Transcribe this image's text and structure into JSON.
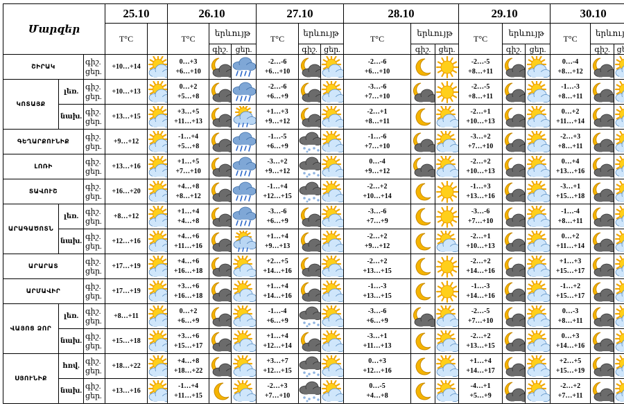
{
  "header": {
    "corner_label": "Մարզեր",
    "dates": [
      "25.10",
      "26.10",
      "27.10",
      "28.10",
      "29.10",
      "30.10"
    ],
    "temp_label": "T°C",
    "phenom_label": "երևույթ",
    "night_abbr": "գիշ.",
    "day_abbr": "ցեր."
  },
  "rows": [
    {
      "region": "ՇԻՐԱԿ",
      "sub": "",
      "first_temp": "+10…+14",
      "first_icon": "sun-cloud-icon",
      "days": [
        {
          "n": "0…+3",
          "d": "+6…+10",
          "ni": "moon-dark-cloud-icon",
          "di": "rain-icon"
        },
        {
          "n": "-2…-6",
          "d": "+6…+10",
          "ni": "moon-dark-cloud-icon",
          "di": "sun-cloud-icon"
        },
        {
          "n": "-2…-6",
          "d": "+6…+10",
          "ni": "moon-icon",
          "di": "sun-icon"
        },
        {
          "n": "-2…-5",
          "d": "+8…+11",
          "ni": "moon-dark-cloud-icon",
          "di": "sun-cloud-icon"
        },
        {
          "n": "0…-4",
          "d": "+8…+12",
          "ni": "moon-dark-cloud-icon",
          "di": "sun-cloud-icon"
        }
      ]
    },
    {
      "region": "ԿՈՏԱՅՔ",
      "sub": "լեռ.",
      "first_temp": "+10…+13",
      "first_icon": "sun-cloud-icon",
      "days": [
        {
          "n": "0…+2",
          "d": "+5…+8",
          "ni": "moon-dark-cloud-icon",
          "di": "rain-icon"
        },
        {
          "n": "-2…-6",
          "d": "+6…+9",
          "ni": "moon-dark-cloud-icon",
          "di": "sun-cloud-icon"
        },
        {
          "n": "-3…-6",
          "d": "+7…+10",
          "ni": "moon-dark-cloud-icon",
          "di": "sun-icon"
        },
        {
          "n": "-2…-5",
          "d": "+8…+11",
          "ni": "moon-dark-cloud-icon",
          "di": "sun-cloud-icon"
        },
        {
          "n": "-1…-3",
          "d": "+8…+11",
          "ni": "moon-dark-cloud-icon",
          "di": "sun-cloud-icon"
        }
      ]
    },
    {
      "region": "",
      "sub": "նախ.",
      "first_temp": "+13…+15",
      "first_icon": "sun-cloud-icon",
      "days": [
        {
          "n": "+3…+5",
          "d": "+11…+13",
          "ni": "moon-dark-cloud-icon",
          "di": "sun-rain-icon"
        },
        {
          "n": "+1…+3",
          "d": "+9…+12",
          "ni": "moon-dark-cloud-icon",
          "di": "sun-cloud-icon"
        },
        {
          "n": "-2…+1",
          "d": "+8…+11",
          "ni": "moon-icon",
          "di": "sun-cloud-icon"
        },
        {
          "n": "-2…+1",
          "d": "+10…+13",
          "ni": "moon-dark-cloud-icon",
          "di": "sun-cloud-icon"
        },
        {
          "n": "0…+2",
          "d": "+11…+14",
          "ni": "moon-dark-cloud-icon",
          "di": "sun-cloud-icon"
        }
      ]
    },
    {
      "region": "ԳԵՂԱՐՔՈՒՆԻՔ",
      "sub": "",
      "first_temp": "+9…+12",
      "first_icon": "sun-cloud-icon",
      "days": [
        {
          "n": "-1…+4",
          "d": "+5…+8",
          "ni": "moon-dark-cloud-icon",
          "di": "rain-icon"
        },
        {
          "n": "-1…-5",
          "d": "+6…+9",
          "ni": "snow-cloud-icon",
          "di": "sun-cloud-icon"
        },
        {
          "n": "-1…-6",
          "d": "+7…+10",
          "ni": "moon-dark-cloud-icon",
          "di": "sun-cloud-icon"
        },
        {
          "n": "-3…+2",
          "d": "+7…+10",
          "ni": "moon-dark-cloud-icon",
          "di": "sun-cloud-icon"
        },
        {
          "n": "-2…+3",
          "d": "+8…+11",
          "ni": "moon-dark-cloud-icon",
          "di": "sun-cloud-icon"
        }
      ]
    },
    {
      "region": "ԼՈՌԻ",
      "sub": "",
      "first_temp": "+13…+16",
      "first_icon": "sun-cloud-icon",
      "days": [
        {
          "n": "+1…+5",
          "d": "+7…+10",
          "ni": "moon-dark-cloud-icon",
          "di": "rain-icon"
        },
        {
          "n": "-3…+2",
          "d": "+9…+12",
          "ni": "snow-cloud-icon",
          "di": "sun-cloud-icon"
        },
        {
          "n": "0…-4",
          "d": "+9…+12",
          "ni": "moon-dark-cloud-icon",
          "di": "sun-cloud-icon"
        },
        {
          "n": "-2…+2",
          "d": "+10…+13",
          "ni": "moon-dark-cloud-icon",
          "di": "sun-cloud-icon"
        },
        {
          "n": "0…+4",
          "d": "+13…+16",
          "ni": "moon-dark-cloud-icon",
          "di": "sun-cloud-icon"
        }
      ]
    },
    {
      "region": "ՏԱՎՈՒՇ",
      "sub": "",
      "first_temp": "+16…+20",
      "first_icon": "sun-cloud-icon",
      "days": [
        {
          "n": "+4…+8",
          "d": "+8…+12",
          "ni": "moon-dark-cloud-icon",
          "di": "rain-icon"
        },
        {
          "n": "-1…+4",
          "d": "+12…+15",
          "ni": "snow-cloud-icon",
          "di": "sun-cloud-icon"
        },
        {
          "n": "-2…+2",
          "d": "+10…+14",
          "ni": "moon-icon",
          "di": "sun-icon"
        },
        {
          "n": "-1…+3",
          "d": "+13…+16",
          "ni": "moon-dark-cloud-icon",
          "di": "sun-cloud-icon"
        },
        {
          "n": "-3…+1",
          "d": "+15…+18",
          "ni": "moon-dark-cloud-icon",
          "di": "sun-cloud-icon"
        }
      ]
    },
    {
      "region": "ԱՐԱԳԱԾՈՏՆ",
      "sub": "լեռ.",
      "first_temp": "+8…+12",
      "first_icon": "sun-cloud-icon",
      "days": [
        {
          "n": "+1…+4",
          "d": "+4…+8",
          "ni": "moon-dark-cloud-icon",
          "di": "rain-icon"
        },
        {
          "n": "-3…-6",
          "d": "+6…+9",
          "ni": "moon-dark-cloud-icon",
          "di": "sun-cloud-icon"
        },
        {
          "n": "-3…-6",
          "d": "+7…+9",
          "ni": "moon-icon",
          "di": "sun-icon"
        },
        {
          "n": "-3…-6",
          "d": "+7…+10",
          "ni": "moon-dark-cloud-icon",
          "di": "sun-cloud-icon"
        },
        {
          "n": "-1…-4",
          "d": "+8…+11",
          "ni": "moon-dark-cloud-icon",
          "di": "sun-cloud-icon"
        }
      ]
    },
    {
      "region": "",
      "sub": "նախ.",
      "first_temp": "+12…+16",
      "first_icon": "sun-cloud-icon",
      "days": [
        {
          "n": "+4…+6",
          "d": "+11…+16",
          "ni": "moon-dark-cloud-icon",
          "di": "sun-rain-icon"
        },
        {
          "n": "+1…+4",
          "d": "+9…+13",
          "ni": "moon-dark-cloud-icon",
          "di": "sun-cloud-icon"
        },
        {
          "n": "-2…+2",
          "d": "+9…+12",
          "ni": "moon-icon",
          "di": "sun-cloud-icon"
        },
        {
          "n": "-2…+1",
          "d": "+10…+13",
          "ni": "moon-dark-cloud-icon",
          "di": "sun-cloud-icon"
        },
        {
          "n": "0…+2",
          "d": "+11…+14",
          "ni": "moon-dark-cloud-icon",
          "di": "sun-cloud-icon"
        }
      ]
    },
    {
      "region": "ԱՐԱՐԱՏ",
      "sub": "",
      "first_temp": "+17…+19",
      "first_icon": "sun-cloud-icon",
      "days": [
        {
          "n": "+4…+6",
          "d": "+16…+18",
          "ni": "moon-dark-cloud-icon",
          "di": "sun-cloud-icon"
        },
        {
          "n": "+2…+5",
          "d": "+14…+16",
          "ni": "moon-dark-cloud-icon",
          "di": "sun-cloud-icon"
        },
        {
          "n": "-2…+2",
          "d": "+13…+15",
          "ni": "moon-icon",
          "di": "sun-icon"
        },
        {
          "n": "-2…+2",
          "d": "+14…+16",
          "ni": "moon-dark-cloud-icon",
          "di": "sun-cloud-icon"
        },
        {
          "n": "+1…+3",
          "d": "+15…+17",
          "ni": "moon-dark-cloud-icon",
          "di": "sun-cloud-icon"
        }
      ]
    },
    {
      "region": "ԱՐՄԱՎԻՐ",
      "sub": "",
      "first_temp": "+17…+19",
      "first_icon": "sun-cloud-icon",
      "days": [
        {
          "n": "+3…+6",
          "d": "+16…+18",
          "ni": "moon-dark-cloud-icon",
          "di": "sun-cloud-icon"
        },
        {
          "n": "+1…+4",
          "d": "+14…+16",
          "ni": "moon-dark-cloud-icon",
          "di": "sun-cloud-icon"
        },
        {
          "n": "-1…-3",
          "d": "+13…+15",
          "ni": "moon-icon",
          "di": "sun-icon"
        },
        {
          "n": "-1…-3",
          "d": "+14…+16",
          "ni": "moon-dark-cloud-icon",
          "di": "sun-cloud-icon"
        },
        {
          "n": "-1…+2",
          "d": "+15…+17",
          "ni": "moon-dark-cloud-icon",
          "di": "sun-cloud-icon"
        }
      ]
    },
    {
      "region": "ՎԱՅՈՑ ՁՈՐ",
      "sub": "լեռ.",
      "first_temp": "+8…+11",
      "first_icon": "sun-cloud-icon",
      "days": [
        {
          "n": "0…+2",
          "d": "+6…+9",
          "ni": "moon-dark-cloud-icon",
          "di": "sun-cloud-icon"
        },
        {
          "n": "-1…-4",
          "d": "+6…+9",
          "ni": "snow-cloud-icon",
          "di": "sun-cloud-icon"
        },
        {
          "n": "-3…-6",
          "d": "+6…+9",
          "ni": "moon-dark-cloud-icon",
          "di": "sun-cloud-icon"
        },
        {
          "n": "-2…-5",
          "d": "+7…+10",
          "ni": "moon-dark-cloud-icon",
          "di": "sun-cloud-icon"
        },
        {
          "n": "0…-3",
          "d": "+8…+11",
          "ni": "moon-dark-cloud-icon",
          "di": "sun-cloud-icon"
        }
      ]
    },
    {
      "region": "",
      "sub": "նախ.",
      "first_temp": "+15…+18",
      "first_icon": "sun-cloud-icon",
      "days": [
        {
          "n": "+3…+6",
          "d": "+15…+17",
          "ni": "moon-dark-cloud-icon",
          "di": "sun-cloud-icon"
        },
        {
          "n": "+1…+4",
          "d": "+12…+14",
          "ni": "moon-dark-cloud-icon",
          "di": "sun-cloud-icon"
        },
        {
          "n": "-3…+1",
          "d": "+11…+13",
          "ni": "moon-icon",
          "di": "sun-cloud-icon"
        },
        {
          "n": "-2…+2",
          "d": "+13…+15",
          "ni": "moon-dark-cloud-icon",
          "di": "sun-cloud-icon"
        },
        {
          "n": "0…+3",
          "d": "+14…+16",
          "ni": "moon-dark-cloud-icon",
          "di": "sun-cloud-icon"
        }
      ]
    },
    {
      "region": "ՍՅՈՒՆԻՔ",
      "sub": "հռվ.",
      "first_temp": "+18…+22",
      "first_icon": "sun-cloud-icon",
      "days": [
        {
          "n": "+4…+8",
          "d": "+18…+22",
          "ni": "moon-dark-cloud-icon",
          "di": "sun-cloud-icon"
        },
        {
          "n": "+3…+7",
          "d": "+12…+15",
          "ni": "snow-cloud-icon",
          "di": "sun-cloud-icon"
        },
        {
          "n": "0…+3",
          "d": "+12…+16",
          "ni": "moon-icon",
          "di": "sun-cloud-icon"
        },
        {
          "n": "+1…+4",
          "d": "+14…+17",
          "ni": "moon-dark-cloud-icon",
          "di": "sun-cloud-icon"
        },
        {
          "n": "+2…+5",
          "d": "+15…+19",
          "ni": "moon-dark-cloud-icon",
          "di": "sun-cloud-icon"
        }
      ]
    },
    {
      "region": "",
      "sub": "նախ.",
      "first_temp": "+13…+16",
      "first_icon": "sun-cloud-icon",
      "days": [
        {
          "n": "-1…+4",
          "d": "+11…+15",
          "ni": "moon-icon",
          "di": "sun-cloud-icon"
        },
        {
          "n": "-2…+3",
          "d": "+7…+10",
          "ni": "snow-cloud-icon",
          "di": "sun-cloud-icon"
        },
        {
          "n": "0…-5",
          "d": "+4…+8",
          "ni": "moon-icon",
          "di": "sun-cloud-icon"
        },
        {
          "n": "-4…+1",
          "d": "+5…+9",
          "ni": "moon-dark-cloud-icon",
          "di": "sun-cloud-icon"
        },
        {
          "n": "-2…+2",
          "d": "+7…+11",
          "ni": "moon-dark-cloud-icon",
          "di": "sun-cloud-icon"
        }
      ]
    }
  ]
}
